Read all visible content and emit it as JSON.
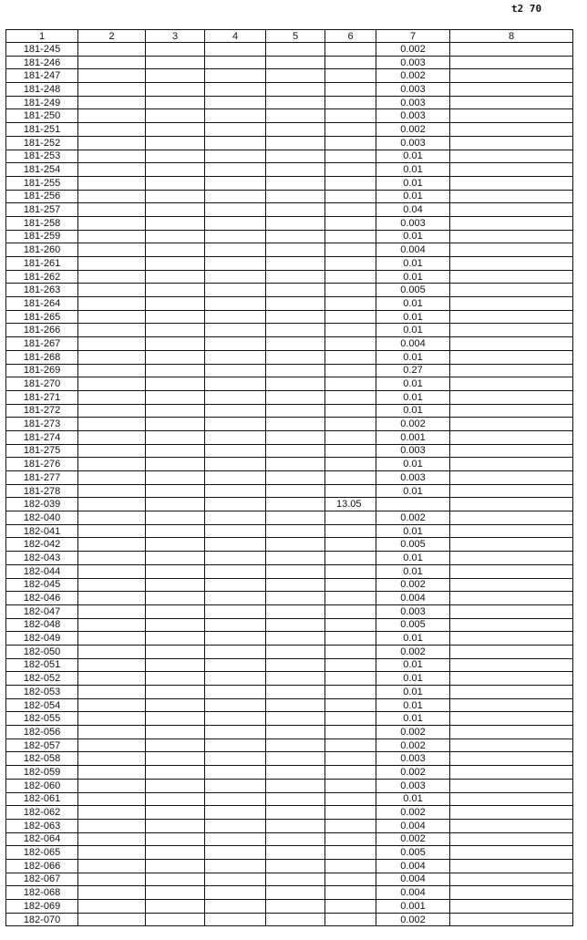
{
  "page_number": "t2 70",
  "columns": [
    "1",
    "2",
    "3",
    "4",
    "5",
    "6",
    "7",
    "8"
  ],
  "rows": [
    {
      "id": "181-245",
      "c6": "",
      "c7": "0.002"
    },
    {
      "id": "181-246",
      "c6": "",
      "c7": "0.003"
    },
    {
      "id": "181-247",
      "c6": "",
      "c7": "0.002"
    },
    {
      "id": "181-248",
      "c6": "",
      "c7": "0.003"
    },
    {
      "id": "181-249",
      "c6": "",
      "c7": "0.003"
    },
    {
      "id": "181-250",
      "c6": "",
      "c7": "0.003"
    },
    {
      "id": "181-251",
      "c6": "",
      "c7": "0.002"
    },
    {
      "id": "181-252",
      "c6": "",
      "c7": "0.003"
    },
    {
      "id": "181-253",
      "c6": "",
      "c7": "0.01"
    },
    {
      "id": "181-254",
      "c6": "",
      "c7": "0.01"
    },
    {
      "id": "181-255",
      "c6": "",
      "c7": "0.01"
    },
    {
      "id": "181-256",
      "c6": "",
      "c7": "0.01"
    },
    {
      "id": "181-257",
      "c6": "",
      "c7": "0.04"
    },
    {
      "id": "181-258",
      "c6": "",
      "c7": "0.003"
    },
    {
      "id": "181-259",
      "c6": "",
      "c7": "0.01"
    },
    {
      "id": "181-260",
      "c6": "",
      "c7": "0.004"
    },
    {
      "id": "181-261",
      "c6": "",
      "c7": "0.01"
    },
    {
      "id": "181-262",
      "c6": "",
      "c7": "0.01"
    },
    {
      "id": "181-263",
      "c6": "",
      "c7": "0.005"
    },
    {
      "id": "181-264",
      "c6": "",
      "c7": "0.01"
    },
    {
      "id": "181-265",
      "c6": "",
      "c7": "0.01"
    },
    {
      "id": "181-266",
      "c6": "",
      "c7": "0.01"
    },
    {
      "id": "181-267",
      "c6": "",
      "c7": "0.004"
    },
    {
      "id": "181-268",
      "c6": "",
      "c7": "0.01"
    },
    {
      "id": "181-269",
      "c6": "",
      "c7": "0.27"
    },
    {
      "id": "181-270",
      "c6": "",
      "c7": "0.01"
    },
    {
      "id": "181-271",
      "c6": "",
      "c7": "0.01"
    },
    {
      "id": "181-272",
      "c6": "",
      "c7": "0.01"
    },
    {
      "id": "181-273",
      "c6": "",
      "c7": "0.002"
    },
    {
      "id": "181-274",
      "c6": "",
      "c7": "0.001"
    },
    {
      "id": "181-275",
      "c6": "",
      "c7": "0.003"
    },
    {
      "id": "181-276",
      "c6": "",
      "c7": "0.01"
    },
    {
      "id": "181-277",
      "c6": "",
      "c7": "0.003"
    },
    {
      "id": "181-278",
      "c6": "",
      "c7": "0.01"
    },
    {
      "id": "182-039",
      "c6": "13.05",
      "c7": ""
    },
    {
      "id": "182-040",
      "c6": "",
      "c7": "0.002"
    },
    {
      "id": "182-041",
      "c6": "",
      "c7": "0.01"
    },
    {
      "id": "182-042",
      "c6": "",
      "c7": "0.005"
    },
    {
      "id": "182-043",
      "c6": "",
      "c7": "0.01"
    },
    {
      "id": "182-044",
      "c6": "",
      "c7": "0.01"
    },
    {
      "id": "182-045",
      "c6": "",
      "c7": "0.002"
    },
    {
      "id": "182-046",
      "c6": "",
      "c7": "0.004"
    },
    {
      "id": "182-047",
      "c6": "",
      "c7": "0.003"
    },
    {
      "id": "182-048",
      "c6": "",
      "c7": "0.005"
    },
    {
      "id": "182-049",
      "c6": "",
      "c7": "0.01"
    },
    {
      "id": "182-050",
      "c6": "",
      "c7": "0.002"
    },
    {
      "id": "182-051",
      "c6": "",
      "c7": "0.01"
    },
    {
      "id": "182-052",
      "c6": "",
      "c7": "0.01"
    },
    {
      "id": "182-053",
      "c6": "",
      "c7": "0.01"
    },
    {
      "id": "182-054",
      "c6": "",
      "c7": "0.01"
    },
    {
      "id": "182-055",
      "c6": "",
      "c7": "0.01"
    },
    {
      "id": "182-056",
      "c6": "",
      "c7": "0.002"
    },
    {
      "id": "182-057",
      "c6": "",
      "c7": "0.002"
    },
    {
      "id": "182-058",
      "c6": "",
      "c7": "0.003"
    },
    {
      "id": "182-059",
      "c6": "",
      "c7": "0.002"
    },
    {
      "id": "182-060",
      "c6": "",
      "c7": "0.003"
    },
    {
      "id": "182-061",
      "c6": "",
      "c7": "0.01"
    },
    {
      "id": "182-062",
      "c6": "",
      "c7": "0.002"
    },
    {
      "id": "182-063",
      "c6": "",
      "c7": "0.004"
    },
    {
      "id": "182-064",
      "c6": "",
      "c7": "0.002"
    },
    {
      "id": "182-065",
      "c6": "",
      "c7": "0.005"
    },
    {
      "id": "182-066",
      "c6": "",
      "c7": "0.004"
    },
    {
      "id": "182-067",
      "c6": "",
      "c7": "0.004"
    },
    {
      "id": "182-068",
      "c6": "",
      "c7": "0.004"
    },
    {
      "id": "182-069",
      "c6": "",
      "c7": "0.001"
    },
    {
      "id": "182-070",
      "c6": "",
      "c7": "0.002"
    }
  ]
}
